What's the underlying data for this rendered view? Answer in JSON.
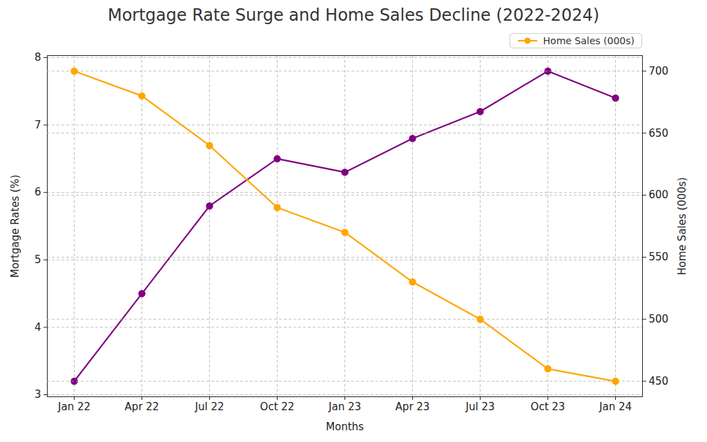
{
  "chart_data": {
    "type": "line",
    "title": "Mortgage Rate Surge and Home Sales Decline (2022-2024)",
    "x_label": "Months",
    "y_label": "Mortgage Rates (%)",
    "y2_label": "Home Sales (000s)",
    "categories": [
      "Jan 22",
      "Apr 22",
      "Jul 22",
      "Oct 22",
      "Jan 23",
      "Apr 23",
      "Jul 23",
      "Oct 23",
      "Jan 24"
    ],
    "series": [
      {
        "color": "#800080",
        "marker": "circle",
        "values": [
          3.2,
          4.5,
          5.8,
          6.5,
          6.3,
          6.8,
          7.2,
          7.8,
          7.4
        ]
      },
      {
        "name": "Home Sales (000s)",
        "axis": "y2",
        "color": "#FFA500",
        "marker": "circle",
        "values": [
          700,
          680,
          640,
          590,
          570,
          530,
          500,
          460,
          450
        ]
      }
    ],
    "ylim": [
      2.97,
      8.03
    ],
    "yticks": [
      3,
      4,
      5,
      6,
      7,
      8
    ],
    "y2lim": [
      437.5,
      712.5
    ],
    "y2ticks": [
      450,
      500,
      550,
      600,
      650,
      700
    ],
    "grid": true,
    "legend": "upper right"
  }
}
